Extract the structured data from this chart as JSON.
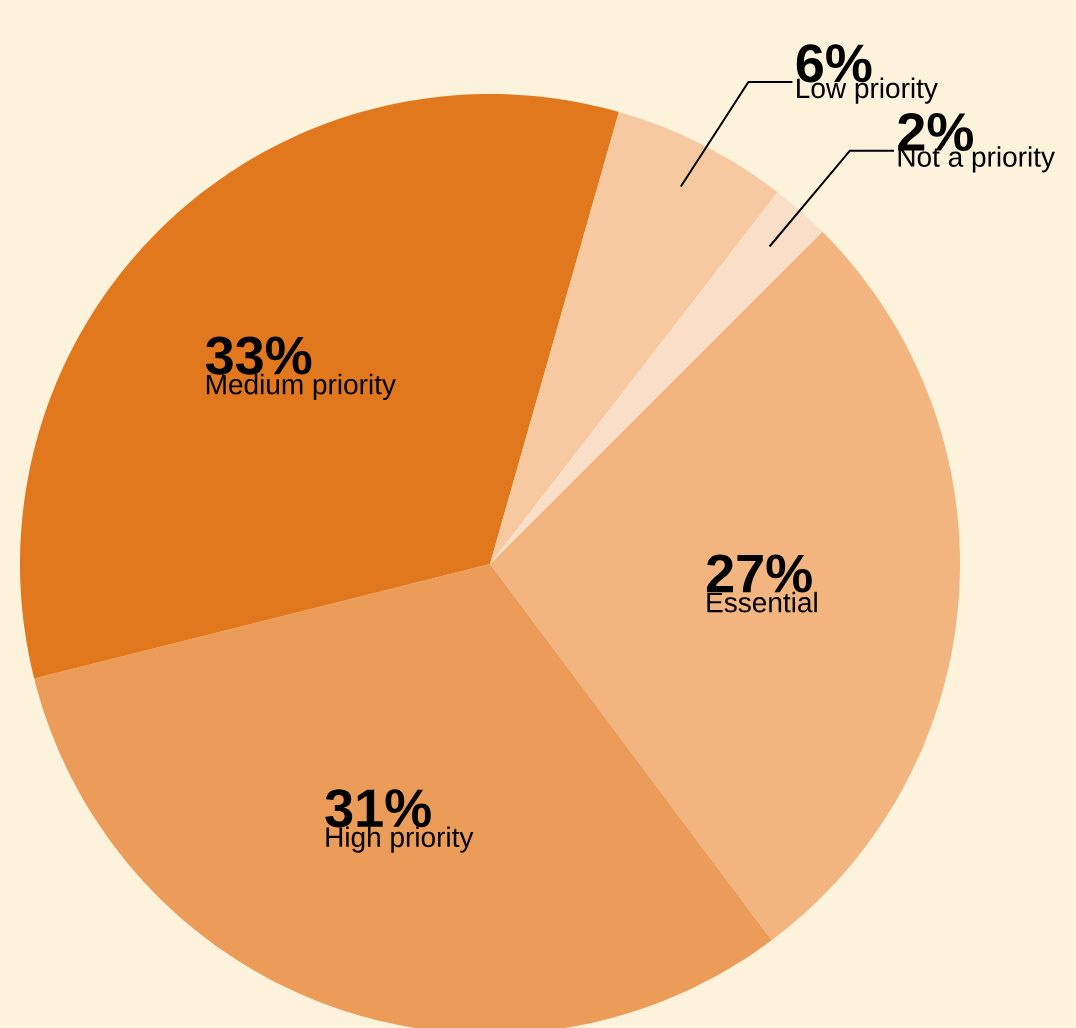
{
  "chart_data": {
    "type": "pie",
    "categories": [
      "Essential",
      "High priority",
      "Medium priority",
      "Low priority",
      "Not a priority"
    ],
    "values": [
      27,
      31,
      33,
      6,
      2
    ],
    "value_labels": [
      "27%",
      "31%",
      "33%",
      "6%",
      "2%"
    ],
    "colors": [
      "#f2b57f",
      "#eb9c58",
      "#e2781e",
      "#f6c9a0",
      "#f9dfc8"
    ]
  }
}
